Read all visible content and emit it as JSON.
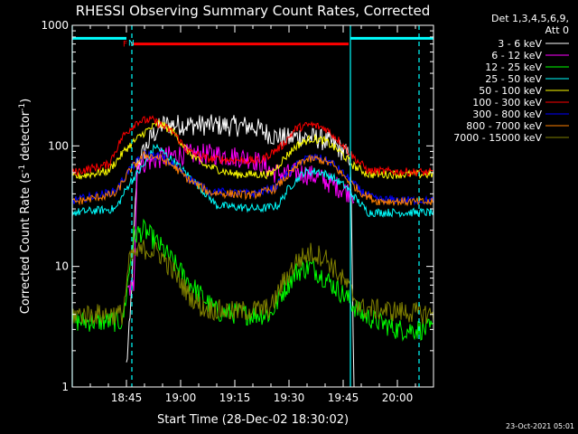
{
  "chart_data": {
    "type": "line",
    "title": "RHESSI Observing Summary Count Rates, Corrected",
    "xlabel": "Start Time (28-Dec-02 18:30:02)",
    "ylabel": "Corrected Count Rate (s",
    "ylabel_sup1": "-1",
    "ylabel_mid": " detector",
    "ylabel_sup2": "-1",
    "ylabel_end": ")",
    "yscale": "log",
    "ylim": [
      1,
      1000
    ],
    "xlim_minutes": [
      0,
      100
    ],
    "x_ticks": [
      {
        "m": 15,
        "label": "18:45"
      },
      {
        "m": 30,
        "label": "19:00"
      },
      {
        "m": 45,
        "label": "19:15"
      },
      {
        "m": 60,
        "label": "19:30"
      },
      {
        "m": 75,
        "label": "19:45"
      },
      {
        "m": 90,
        "label": "20:00"
      }
    ],
    "y_ticks": [
      {
        "v": 1,
        "label": "1"
      },
      {
        "v": 10,
        "label": "10"
      },
      {
        "v": 100,
        "label": "100"
      },
      {
        "v": 1000,
        "label": "1000"
      }
    ],
    "legend_header": [
      "Det 1,3,4,5,6,9,",
      "Att 0"
    ],
    "legend_position": "right",
    "series": [
      {
        "name": "3 - 6 keV",
        "color": "#ffffff",
        "values": [
          [
            15,
            1.5
          ],
          [
            16,
            3.5
          ],
          [
            18,
            70
          ],
          [
            22,
            120
          ],
          [
            25,
            150
          ],
          [
            30,
            150
          ],
          [
            40,
            148
          ],
          [
            50,
            145
          ],
          [
            56,
            120
          ],
          [
            60,
            115
          ],
          [
            63,
            120
          ],
          [
            68,
            115
          ],
          [
            72,
            105
          ],
          [
            75,
            90
          ],
          [
            77,
            80
          ],
          [
            78,
            1
          ]
        ]
      },
      {
        "name": "6 - 12 keV",
        "color": "#ff00ff",
        "values": [
          [
            15,
            6
          ],
          [
            17,
            7
          ],
          [
            18,
            70
          ],
          [
            25,
            80
          ],
          [
            30,
            85
          ],
          [
            40,
            85
          ],
          [
            50,
            78
          ],
          [
            56,
            60
          ],
          [
            60,
            58
          ],
          [
            63,
            60
          ],
          [
            68,
            55
          ],
          [
            72,
            48
          ],
          [
            76,
            42
          ],
          [
            78,
            40
          ],
          [
            78.2,
            4
          ]
        ]
      },
      {
        "name": "12 - 25 keV",
        "color": "#00ff00",
        "values": [
          [
            0,
            3.5
          ],
          [
            14,
            3.5
          ],
          [
            17,
            18
          ],
          [
            20,
            20
          ],
          [
            25,
            14
          ],
          [
            30,
            9
          ],
          [
            35,
            6
          ],
          [
            40,
            4.2
          ],
          [
            48,
            4
          ],
          [
            55,
            4
          ],
          [
            58,
            6
          ],
          [
            62,
            9
          ],
          [
            66,
            10
          ],
          [
            70,
            8
          ],
          [
            76,
            5.5
          ],
          [
            80,
            4
          ],
          [
            90,
            3
          ],
          [
            100,
            3
          ]
        ]
      },
      {
        "name": "25 - 50 keV",
        "color": "#00ffff",
        "values": [
          [
            0,
            28
          ],
          [
            12,
            30
          ],
          [
            16,
            50
          ],
          [
            20,
            70
          ],
          [
            23,
            100
          ],
          [
            28,
            75
          ],
          [
            34,
            50
          ],
          [
            40,
            32
          ],
          [
            52,
            30
          ],
          [
            57,
            32
          ],
          [
            60,
            45
          ],
          [
            64,
            60
          ],
          [
            68,
            62
          ],
          [
            72,
            55
          ],
          [
            76,
            45
          ],
          [
            79,
            35
          ],
          [
            82,
            28
          ],
          [
            100,
            28
          ]
        ]
      },
      {
        "name": "50 - 100 keV",
        "color": "#ffff00",
        "values": [
          [
            0,
            55
          ],
          [
            10,
            62
          ],
          [
            15,
            95
          ],
          [
            20,
            130
          ],
          [
            24,
            155
          ],
          [
            28,
            130
          ],
          [
            32,
            90
          ],
          [
            36,
            70
          ],
          [
            45,
            58
          ],
          [
            55,
            58
          ],
          [
            58,
            75
          ],
          [
            62,
            100
          ],
          [
            66,
            115
          ],
          [
            70,
            110
          ],
          [
            74,
            90
          ],
          [
            78,
            68
          ],
          [
            82,
            58
          ],
          [
            100,
            58
          ]
        ]
      },
      {
        "name": "100 - 300 keV",
        "color": "#ff0000",
        "values": [
          [
            0,
            60
          ],
          [
            10,
            70
          ],
          [
            14,
            120
          ],
          [
            18,
            160
          ],
          [
            22,
            165
          ],
          [
            28,
            130
          ],
          [
            32,
            90
          ],
          [
            38,
            78
          ],
          [
            52,
            75
          ],
          [
            58,
            100
          ],
          [
            62,
            140
          ],
          [
            66,
            150
          ],
          [
            70,
            140
          ],
          [
            74,
            110
          ],
          [
            78,
            80
          ],
          [
            82,
            62
          ],
          [
            100,
            60
          ]
        ]
      },
      {
        "name": "300 - 800 keV",
        "color": "#0000ff",
        "values": [
          [
            0,
            35
          ],
          [
            12,
            42
          ],
          [
            16,
            65
          ],
          [
            20,
            85
          ],
          [
            24,
            82
          ],
          [
            28,
            70
          ],
          [
            32,
            55
          ],
          [
            38,
            42
          ],
          [
            50,
            40
          ],
          [
            56,
            45
          ],
          [
            60,
            60
          ],
          [
            64,
            78
          ],
          [
            68,
            80
          ],
          [
            72,
            72
          ],
          [
            76,
            55
          ],
          [
            80,
            42
          ],
          [
            84,
            36
          ],
          [
            100,
            35
          ]
        ]
      },
      {
        "name": "800 - 7000 keV",
        "color": "#ff8000",
        "values": [
          [
            0,
            34
          ],
          [
            12,
            40
          ],
          [
            16,
            63
          ],
          [
            20,
            84
          ],
          [
            24,
            80
          ],
          [
            28,
            68
          ],
          [
            32,
            53
          ],
          [
            38,
            41
          ],
          [
            50,
            39
          ],
          [
            56,
            44
          ],
          [
            60,
            58
          ],
          [
            64,
            76
          ],
          [
            68,
            78
          ],
          [
            72,
            70
          ],
          [
            76,
            53
          ],
          [
            80,
            41
          ],
          [
            84,
            35
          ],
          [
            100,
            34
          ]
        ]
      },
      {
        "name": "7000 - 15000 keV",
        "color": "#808000",
        "values": [
          [
            0,
            4
          ],
          [
            14,
            4
          ],
          [
            16,
            12
          ],
          [
            20,
            14
          ],
          [
            24,
            13
          ],
          [
            28,
            9
          ],
          [
            32,
            6
          ],
          [
            36,
            4.5
          ],
          [
            45,
            4.2
          ],
          [
            55,
            4.5
          ],
          [
            58,
            7
          ],
          [
            62,
            11
          ],
          [
            66,
            13
          ],
          [
            70,
            12
          ],
          [
            76,
            7
          ],
          [
            80,
            4.5
          ],
          [
            100,
            4
          ]
        ]
      }
    ],
    "annotations": [
      {
        "text": "F",
        "color": "#ff0000",
        "m": 15
      },
      {
        "text": "N",
        "color": "#00ffff",
        "m": 16.5
      }
    ],
    "flare_bar": {
      "color": "#ff0000",
      "m_start": 16.5,
      "m_end": 76.5,
      "value": 700
    },
    "night_bars": [
      {
        "color": "#00ffff",
        "m_start": 0,
        "m_end": 15,
        "value": 780
      },
      {
        "color": "#00ffff",
        "m_start": 77,
        "m_end": 100,
        "value": 780
      }
    ],
    "saa_lines": [
      {
        "color": "#00ffff",
        "style": "solid",
        "m": 0
      },
      {
        "color": "#00ffff",
        "style": "dashed",
        "m": 16.5
      },
      {
        "color": "#00ffff",
        "style": "solid",
        "m": 77
      },
      {
        "color": "#00ffff",
        "style": "dashed",
        "m": 96
      }
    ]
  },
  "footer_timestamp": "23-Oct-2021 05:01"
}
